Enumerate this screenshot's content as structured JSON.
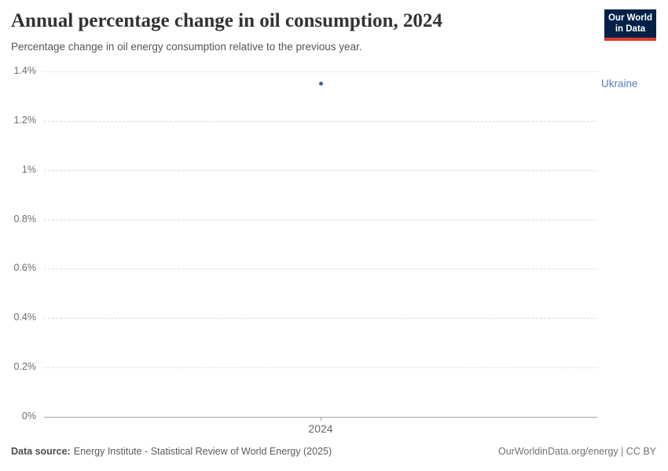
{
  "header": {
    "title": "Annual percentage change in oil consumption, 2024",
    "subtitle": "Percentage change in oil energy consumption relative to the previous year."
  },
  "logo": {
    "line1": "Our World",
    "line2": "in Data",
    "bg_color": "#002147",
    "accent_color": "#dc3a2c"
  },
  "chart_data": {
    "type": "scatter",
    "title": "Annual percentage change in oil consumption, 2024",
    "x": [
      2024
    ],
    "series": [
      {
        "name": "Ukraine",
        "values": [
          1.35
        ],
        "color": "#3d6399"
      }
    ],
    "xlabel": "",
    "ylabel": "",
    "ylim": [
      0,
      1.4
    ],
    "yticks": [
      {
        "value": 0,
        "label": "0%"
      },
      {
        "value": 0.2,
        "label": "0.2%"
      },
      {
        "value": 0.4,
        "label": "0.4%"
      },
      {
        "value": 0.6,
        "label": "0.6%"
      },
      {
        "value": 0.8,
        "label": "0.8%"
      },
      {
        "value": 1.0,
        "label": "1%"
      },
      {
        "value": 1.2,
        "label": "1.2%"
      },
      {
        "value": 1.4,
        "label": "1.4%"
      }
    ],
    "xticks": [
      {
        "value": 2024,
        "label": "2024"
      }
    ],
    "grid": "horizontal-dashed",
    "legend_position": "right-entity-label",
    "entity_label": {
      "text": "Ukraine",
      "color": "#577eb5"
    }
  },
  "footer": {
    "source_label": "Data source:",
    "source_text": "Energy Institute - Statistical Review of World Energy (2025)",
    "credit": "OurWorldinData.org/energy | CC BY"
  }
}
